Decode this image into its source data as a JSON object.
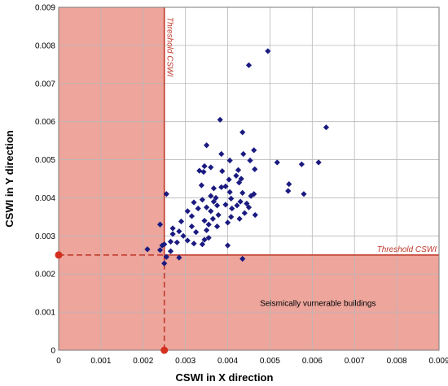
{
  "chart_data": {
    "type": "scatter",
    "xlabel": "CSWI in X direction",
    "ylabel": "CSWI in Y direction",
    "xlim": [
      0,
      0.009
    ],
    "ylim": [
      0,
      0.009
    ],
    "x_ticks": [
      "0",
      "0.001",
      "0.002",
      "0.003",
      "0.004",
      "0.005",
      "0.006",
      "0.007",
      "0.008",
      "0.009"
    ],
    "y_ticks": [
      "0",
      "0.001",
      "0.002",
      "0.003",
      "0.004",
      "0.005",
      "0.006",
      "0.007",
      "0.008",
      "0.009"
    ],
    "grid": true,
    "threshold": 0.0025,
    "threshold_label_vertical": "Threshold CSWI",
    "threshold_label_horizontal": "Threshold CSWI",
    "region_label": "Seismically vurnerable buildings",
    "colors": {
      "points": "#1a1a80",
      "region": "#eda59c",
      "threshold_line": "#c0392b",
      "marker": "#d42e1e"
    },
    "points": [
      [
        0.00495,
        0.00785
      ],
      [
        0.0045,
        0.00748
      ],
      [
        0.00382,
        0.00605
      ],
      [
        0.00633,
        0.00585
      ],
      [
        0.00435,
        0.00572
      ],
      [
        0.0035,
        0.00538
      ],
      [
        0.00462,
        0.00525
      ],
      [
        0.00385,
        0.00515
      ],
      [
        0.00437,
        0.00515
      ],
      [
        0.00575,
        0.00488
      ],
      [
        0.00405,
        0.00498
      ],
      [
        0.00453,
        0.00498
      ],
      [
        0.00517,
        0.00493
      ],
      [
        0.00615,
        0.00493
      ],
      [
        0.00345,
        0.00483
      ],
      [
        0.00464,
        0.00475
      ],
      [
        0.0036,
        0.0048
      ],
      [
        0.00425,
        0.00473
      ],
      [
        0.00343,
        0.00468
      ],
      [
        0.00333,
        0.00471
      ],
      [
        0.00387,
        0.0047
      ],
      [
        0.0042,
        0.00458
      ],
      [
        0.00403,
        0.00448
      ],
      [
        0.00545,
        0.00436
      ],
      [
        0.00427,
        0.0044
      ],
      [
        0.00432,
        0.0045
      ],
      [
        0.00338,
        0.00433
      ],
      [
        0.00395,
        0.0043
      ],
      [
        0.0058,
        0.0041
      ],
      [
        0.00543,
        0.00418
      ],
      [
        0.00367,
        0.00425
      ],
      [
        0.00385,
        0.00428
      ],
      [
        0.00405,
        0.00415
      ],
      [
        0.00435,
        0.00413
      ],
      [
        0.00462,
        0.0041
      ],
      [
        0.0036,
        0.00405
      ],
      [
        0.00372,
        0.004
      ],
      [
        0.00255,
        0.0041
      ],
      [
        0.00408,
        0.00398
      ],
      [
        0.00455,
        0.00405
      ],
      [
        0.00367,
        0.0039
      ],
      [
        0.0034,
        0.00395
      ],
      [
        0.0032,
        0.00388
      ],
      [
        0.0043,
        0.0039
      ],
      [
        0.00445,
        0.00385
      ],
      [
        0.00395,
        0.00382
      ],
      [
        0.00375,
        0.0038
      ],
      [
        0.00422,
        0.0038
      ],
      [
        0.0045,
        0.00375
      ],
      [
        0.0033,
        0.00372
      ],
      [
        0.0035,
        0.00375
      ],
      [
        0.0041,
        0.00372
      ],
      [
        0.0036,
        0.00365
      ],
      [
        0.00305,
        0.00365
      ],
      [
        0.0044,
        0.0036
      ],
      [
        0.00378,
        0.00355
      ],
      [
        0.00465,
        0.00355
      ],
      [
        0.00315,
        0.00352
      ],
      [
        0.00408,
        0.0035
      ],
      [
        0.00365,
        0.00345
      ],
      [
        0.00345,
        0.0034
      ],
      [
        0.00428,
        0.00345
      ],
      [
        0.0029,
        0.00338
      ],
      [
        0.004,
        0.00335
      ],
      [
        0.00355,
        0.0033
      ],
      [
        0.00315,
        0.00325
      ],
      [
        0.00375,
        0.00325
      ],
      [
        0.0027,
        0.0032
      ],
      [
        0.0035,
        0.00315
      ],
      [
        0.00285,
        0.00312
      ],
      [
        0.00325,
        0.0031
      ],
      [
        0.0024,
        0.0033
      ],
      [
        0.0027,
        0.00305
      ],
      [
        0.00295,
        0.003
      ],
      [
        0.00355,
        0.00295
      ],
      [
        0.00345,
        0.0029
      ],
      [
        0.00305,
        0.00288
      ],
      [
        0.00265,
        0.00285
      ],
      [
        0.0028,
        0.00283
      ],
      [
        0.0032,
        0.0028
      ],
      [
        0.0034,
        0.00278
      ],
      [
        0.0025,
        0.00278
      ],
      [
        0.00245,
        0.00275
      ],
      [
        0.00265,
        0.0026
      ],
      [
        0.004,
        0.00275
      ],
      [
        0.0021,
        0.00265
      ],
      [
        0.0024,
        0.00263
      ],
      [
        0.00255,
        0.00245
      ],
      [
        0.0025,
        0.00228
      ],
      [
        0.00285,
        0.00243
      ],
      [
        0.00435,
        0.0024
      ]
    ]
  }
}
